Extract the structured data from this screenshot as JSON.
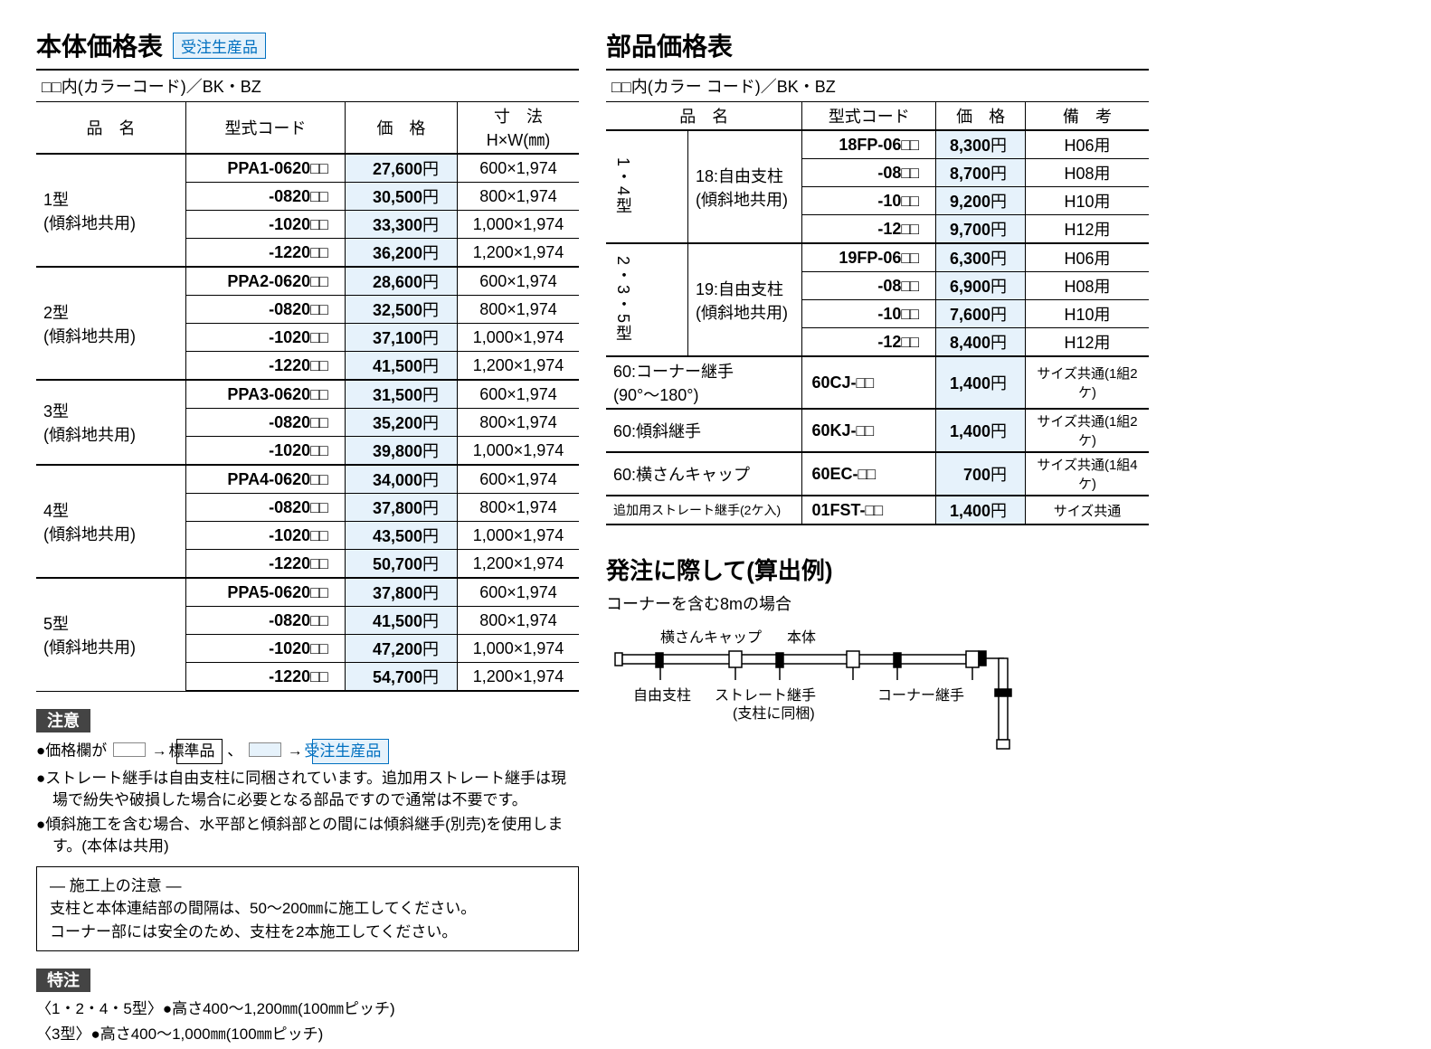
{
  "colors": {
    "price_bg": "#e6f2fb",
    "rule": "#000000",
    "badge_blue": "#0070c0",
    "text": "#000000"
  },
  "left": {
    "title": "本体価格表",
    "badge": "受注生産品",
    "subhead": "□□内(カラーコード)／BK・BZ",
    "headers": {
      "name": "品　名",
      "code": "型式コード",
      "price": "価　格",
      "dim1": "寸　法",
      "dim2": "H×W(㎜)"
    },
    "groups": [
      {
        "name1": "1型",
        "name2": "(傾斜地共用)",
        "rows": [
          {
            "code": "PPA1-0620",
            "price": "27,600",
            "dim": "600×1,974"
          },
          {
            "code": "-0820",
            "price": "30,500",
            "dim": "800×1,974"
          },
          {
            "code": "-1020",
            "price": "33,300",
            "dim": "1,000×1,974"
          },
          {
            "code": "-1220",
            "price": "36,200",
            "dim": "1,200×1,974"
          }
        ]
      },
      {
        "name1": "2型",
        "name2": "(傾斜地共用)",
        "rows": [
          {
            "code": "PPA2-0620",
            "price": "28,600",
            "dim": "600×1,974"
          },
          {
            "code": "-0820",
            "price": "32,500",
            "dim": "800×1,974"
          },
          {
            "code": "-1020",
            "price": "37,100",
            "dim": "1,000×1,974"
          },
          {
            "code": "-1220",
            "price": "41,500",
            "dim": "1,200×1,974"
          }
        ]
      },
      {
        "name1": "3型",
        "name2": "(傾斜地共用)",
        "rows": [
          {
            "code": "PPA3-0620",
            "price": "31,500",
            "dim": "600×1,974"
          },
          {
            "code": "-0820",
            "price": "35,200",
            "dim": "800×1,974"
          },
          {
            "code": "-1020",
            "price": "39,800",
            "dim": "1,000×1,974"
          }
        ]
      },
      {
        "name1": "4型",
        "name2": "(傾斜地共用)",
        "rows": [
          {
            "code": "PPA4-0620",
            "price": "34,000",
            "dim": "600×1,974"
          },
          {
            "code": "-0820",
            "price": "37,800",
            "dim": "800×1,974"
          },
          {
            "code": "-1020",
            "price": "43,500",
            "dim": "1,000×1,974"
          },
          {
            "code": "-1220",
            "price": "50,700",
            "dim": "1,200×1,974"
          }
        ]
      },
      {
        "name1": "5型",
        "name2": "(傾斜地共用)",
        "rows": [
          {
            "code": "PPA5-0620",
            "price": "37,800",
            "dim": "600×1,974"
          },
          {
            "code": "-0820",
            "price": "41,500",
            "dim": "800×1,974"
          },
          {
            "code": "-1020",
            "price": "47,200",
            "dim": "1,000×1,974"
          },
          {
            "code": "-1220",
            "price": "54,700",
            "dim": "1,200×1,974"
          }
        ]
      }
    ],
    "notice_label": "注意",
    "notice_line1a": "●価格欄が",
    "notice_line1b": "→",
    "notice_line1_std": "標準品",
    "notice_line1c": "、",
    "notice_line1d": "→",
    "notice_line1_bto": "受注生産品",
    "notices": [
      "●ストレート継手は自由支柱に同梱されています。追加用ストレート継手は現場で紛失や破損した場合に必要となる部品ですので通常は不要です。",
      "●傾斜施工を含む場合、水平部と傾斜部との間には傾斜継手(別売)を使用します。(本体は共用)"
    ],
    "inset_title": "― 施工上の注意 ―",
    "inset_lines": [
      "支柱と本体連結部の間隔は、50〜200㎜に施工してください。",
      "コーナー部には安全のため、支柱を2本施工してください。"
    ],
    "special_label": "特注",
    "special_lines": [
      "〈1・2・4・5型〉●高さ400〜1,200㎜(100㎜ピッチ)",
      "〈3型〉●高さ400〜1,000㎜(100㎜ピッチ)"
    ]
  },
  "right": {
    "title": "部品価格表",
    "subhead": "□□内(カラー コード)／BK・BZ",
    "headers": {
      "name": "品　名",
      "code": "型式コード",
      "price": "価　格",
      "remark": "備　考"
    },
    "groups": [
      {
        "cat": "1・4型",
        "name1": "18:自由支柱",
        "name2": "(傾斜地共用)",
        "rows": [
          {
            "code": "18FP-06",
            "price": "8,300",
            "remark": "H06用"
          },
          {
            "code": "-08",
            "price": "8,700",
            "remark": "H08用"
          },
          {
            "code": "-10",
            "price": "9,200",
            "remark": "H10用"
          },
          {
            "code": "-12",
            "price": "9,700",
            "remark": "H12用"
          }
        ]
      },
      {
        "cat": "2・3・5型",
        "name1": "19:自由支柱",
        "name2": "(傾斜地共用)",
        "rows": [
          {
            "code": "19FP-06",
            "price": "6,300",
            "remark": "H06用"
          },
          {
            "code": "-08",
            "price": "6,900",
            "remark": "H08用"
          },
          {
            "code": "-10",
            "price": "7,600",
            "remark": "H10用"
          },
          {
            "code": "-12",
            "price": "8,400",
            "remark": "H12用"
          }
        ]
      }
    ],
    "single_rows": [
      {
        "name1": "60:コーナー継手",
        "name2": "(90°〜180°)",
        "code": "60CJ-",
        "price": "1,400",
        "remark": "サイズ共通(1組2ケ)",
        "span2": true
      },
      {
        "name1": "60:傾斜継手",
        "code": "60KJ-",
        "price": "1,400",
        "remark": "サイズ共通(1組2ケ)"
      },
      {
        "name1": "60:横さんキャップ",
        "code": "60EC-",
        "price": "700",
        "remark": "サイズ共通(1組4ケ)"
      },
      {
        "name1": "追加用ストレート継手(2ケ入)",
        "code": "01FST-",
        "price": "1,400",
        "remark": "サイズ共通",
        "small": true
      }
    ],
    "calc_title": "発注に際して(算出例)",
    "calc_sub": "コーナーを含む8mの場合",
    "diagram_labels": {
      "cap": "横さんキャップ",
      "body": "本体",
      "post": "自由支柱",
      "straight": "ストレート継手",
      "straight2": "(支柱に同梱)",
      "corner": "コーナー継手"
    }
  }
}
